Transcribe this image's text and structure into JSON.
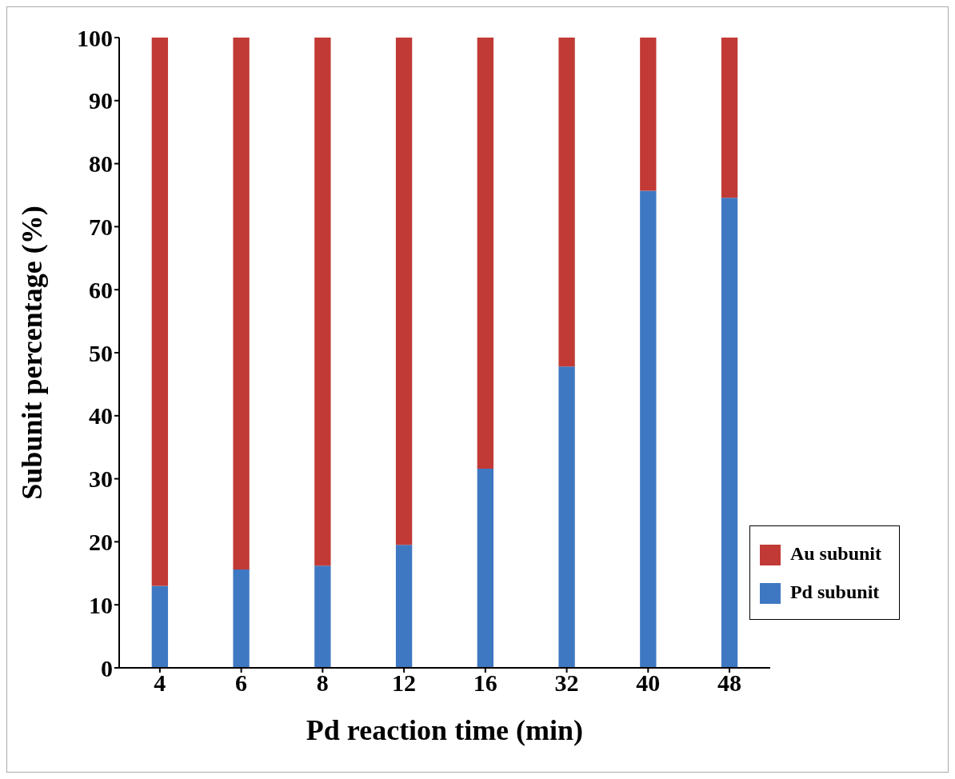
{
  "chart_data": {
    "type": "bar",
    "stacked": true,
    "xlabel": "Pd reaction time (min)",
    "ylabel": "Subunit percentage (%)",
    "categories": [
      "4",
      "6",
      "8",
      "12",
      "16",
      "32",
      "40",
      "48"
    ],
    "series": [
      {
        "name": "Pd subunit",
        "color": "#3f78c2",
        "values": [
          13,
          15.6,
          16.2,
          19.5,
          31.6,
          47.8,
          75.7,
          74.6
        ]
      },
      {
        "name": "Au subunit",
        "color": "#c23a35",
        "values": [
          87,
          84.4,
          83.8,
          80.5,
          68.4,
          52.2,
          24.3,
          25.4
        ]
      }
    ],
    "ylim": [
      0,
      100
    ],
    "yticks": [
      0,
      10,
      20,
      30,
      40,
      50,
      60,
      70,
      80,
      90,
      100
    ],
    "grid": false,
    "legend": "bottom right"
  }
}
